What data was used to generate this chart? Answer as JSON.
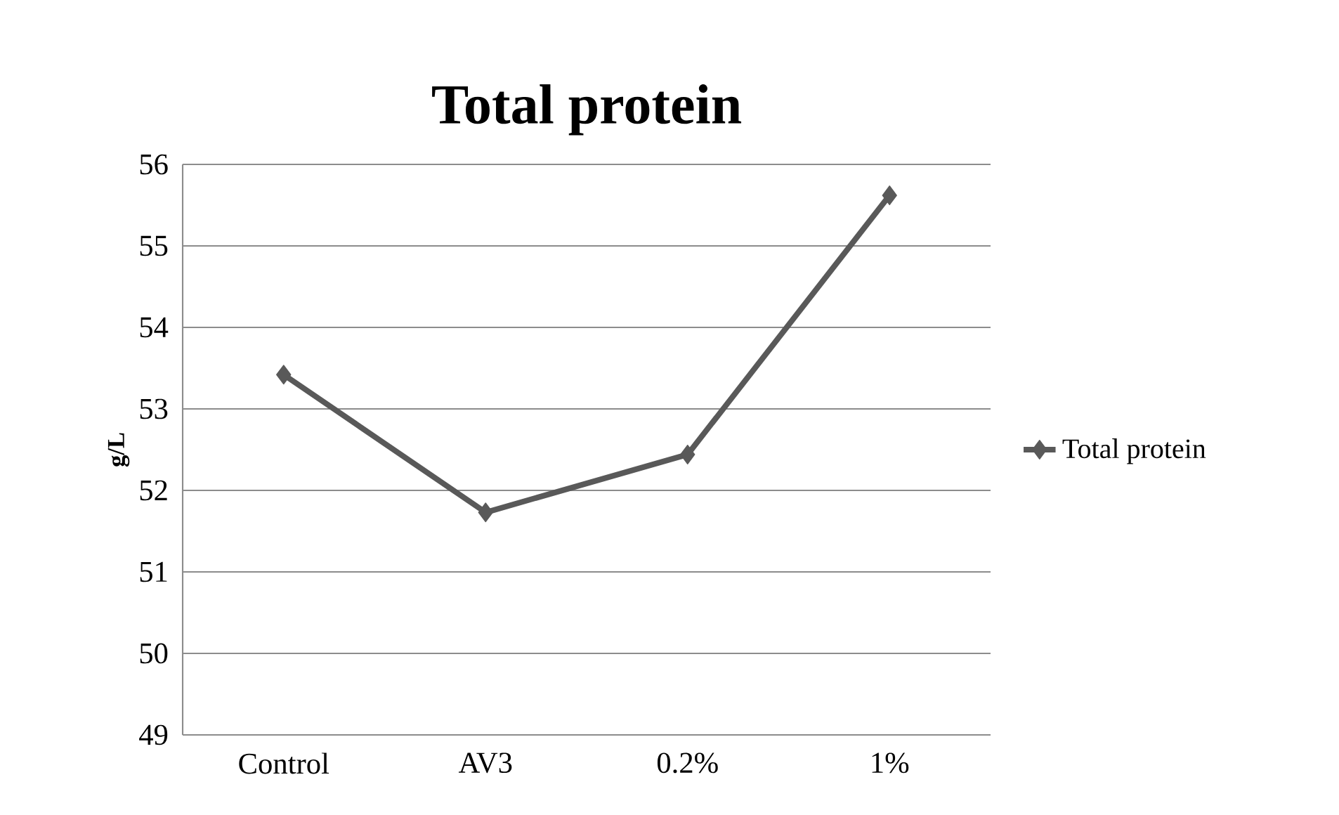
{
  "chart_data": {
    "type": "line",
    "title": "Total protein",
    "ylabel": "g/L",
    "categories": [
      "Control",
      "AV3",
      "0.2%",
      "1%"
    ],
    "series": [
      {
        "name": "Total protein",
        "color": "#595959",
        "values": [
          53.42,
          51.73,
          52.44,
          55.62
        ]
      }
    ],
    "ylim": [
      49,
      56
    ],
    "yticks": [
      49,
      50,
      51,
      52,
      53,
      54,
      55,
      56
    ],
    "grid": "y",
    "legend": "right",
    "marker": "diamond",
    "line_style": "solid"
  }
}
